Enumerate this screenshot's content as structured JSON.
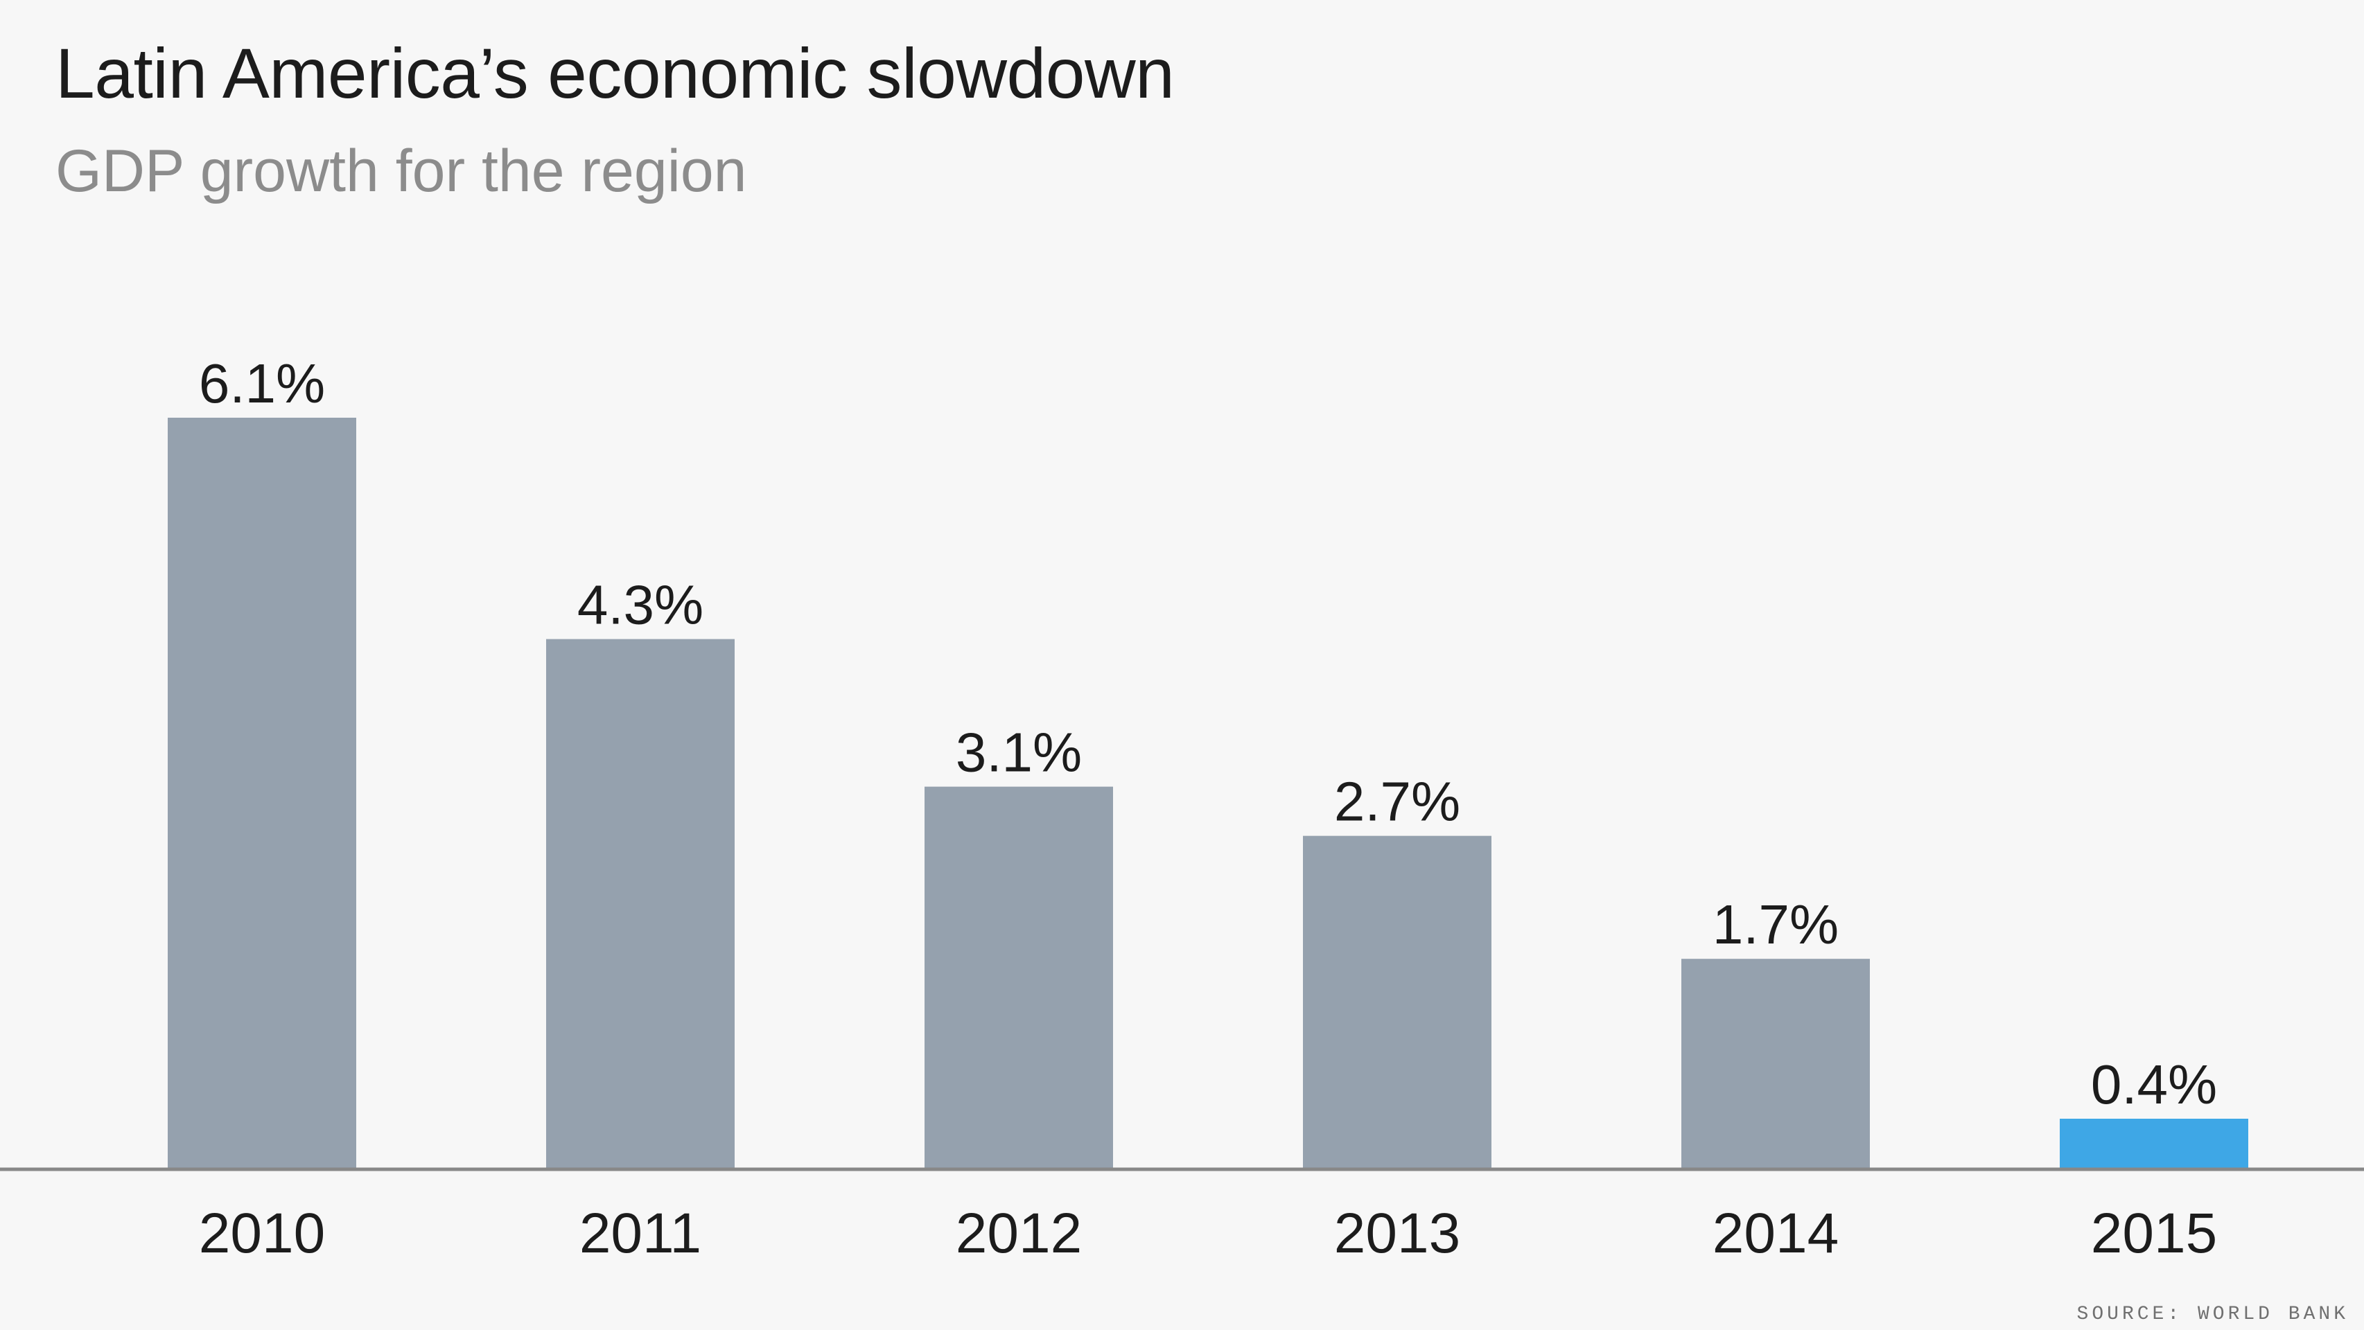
{
  "header": {
    "title": "Latin America’s economic slowdown",
    "subtitle": "GDP growth for the region"
  },
  "footer": {
    "source": "SOURCE: WORLD BANK"
  },
  "colors": {
    "background": "#f7f7f7",
    "bar_default": "#95a1ae",
    "bar_highlight": "#3ea7e6",
    "axis_line": "#888888",
    "label_text": "#1c1c1c"
  },
  "chart_data": {
    "type": "bar",
    "categories": [
      "2010",
      "2011",
      "2012",
      "2013",
      "2014",
      "2015"
    ],
    "values": [
      6.1,
      4.3,
      3.1,
      2.7,
      1.7,
      0.4
    ],
    "data_labels": [
      "6.1%",
      "4.3%",
      "3.1%",
      "2.7%",
      "1.7%",
      "0.4%"
    ],
    "highlight_category": "2015",
    "title": "Latin America’s economic slowdown",
    "subtitle": "GDP growth for the region",
    "xlabel": "",
    "ylabel": "",
    "ylim": [
      0,
      6.1
    ],
    "grid": false,
    "legend": "none"
  }
}
